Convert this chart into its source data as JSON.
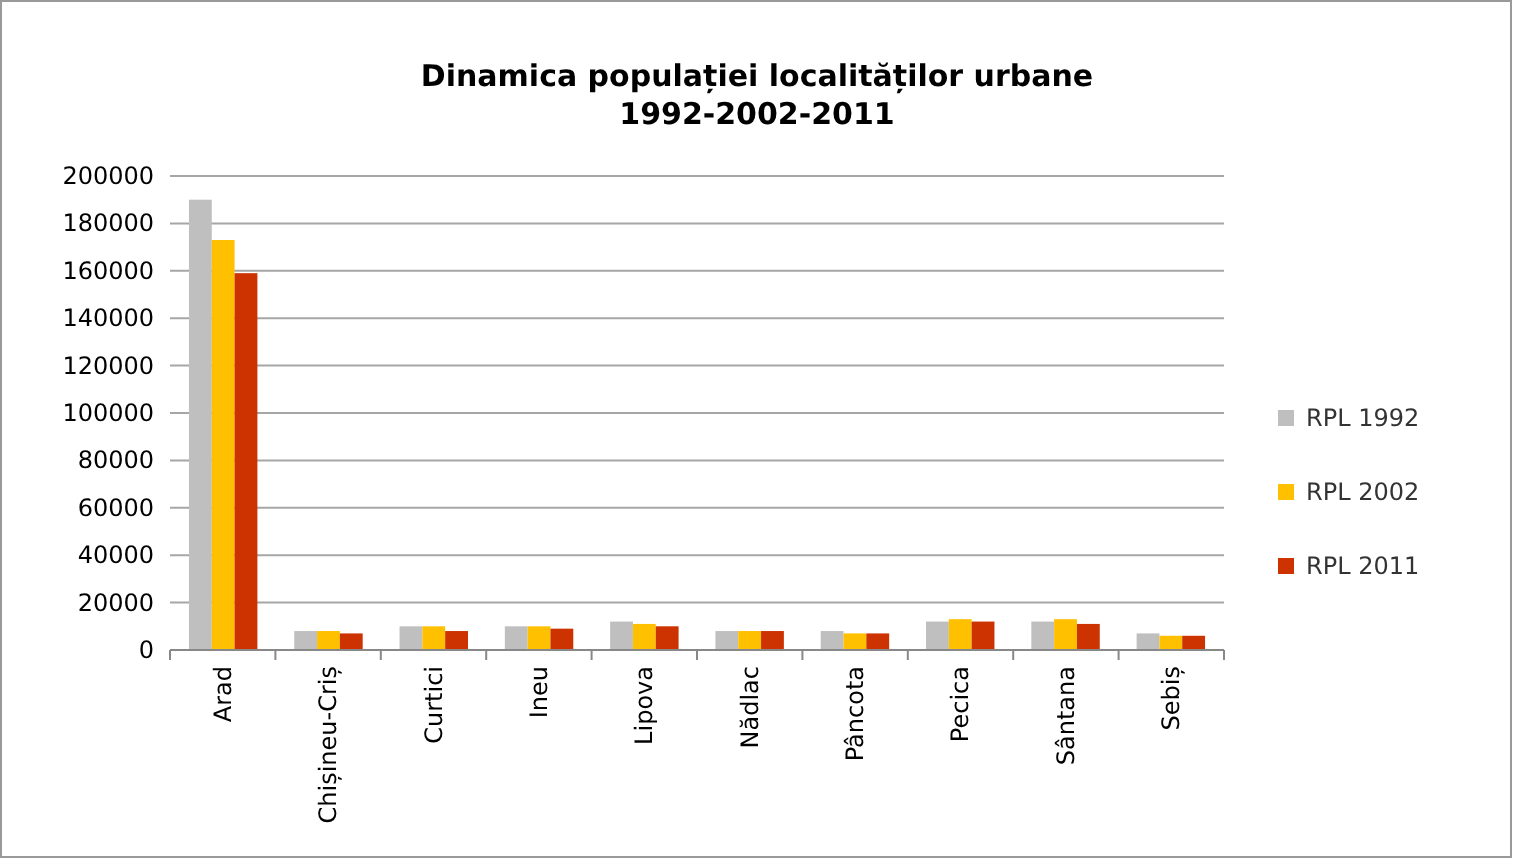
{
  "chart_data": {
    "type": "bar",
    "title": "Dinamica populației localităților  urbane\n1992-2002-2011",
    "categories": [
      "Arad",
      "Chișineu-Criș",
      "Curtici",
      "Ineu",
      "Lipova",
      "Nădlac",
      "Pâncota",
      "Pecica",
      "Sântana",
      "Sebiș"
    ],
    "series": [
      {
        "name": "RPL 1992",
        "color": "#bfbfbf",
        "values": [
          190000,
          8000,
          10000,
          10000,
          12000,
          8000,
          8000,
          12000,
          12000,
          7000
        ]
      },
      {
        "name": "RPL 2002",
        "color": "#ffc000",
        "values": [
          173000,
          8000,
          10000,
          10000,
          11000,
          8000,
          7000,
          13000,
          13000,
          6000
        ]
      },
      {
        "name": "RPL 2011",
        "color": "#cc3300",
        "values": [
          159000,
          7000,
          8000,
          9000,
          10000,
          8000,
          7000,
          12000,
          11000,
          6000
        ]
      }
    ],
    "ylim": [
      0,
      200000
    ],
    "yticks": [
      0,
      20000,
      40000,
      60000,
      80000,
      100000,
      120000,
      140000,
      160000,
      180000,
      200000
    ],
    "grid": "y",
    "legend": "right"
  }
}
